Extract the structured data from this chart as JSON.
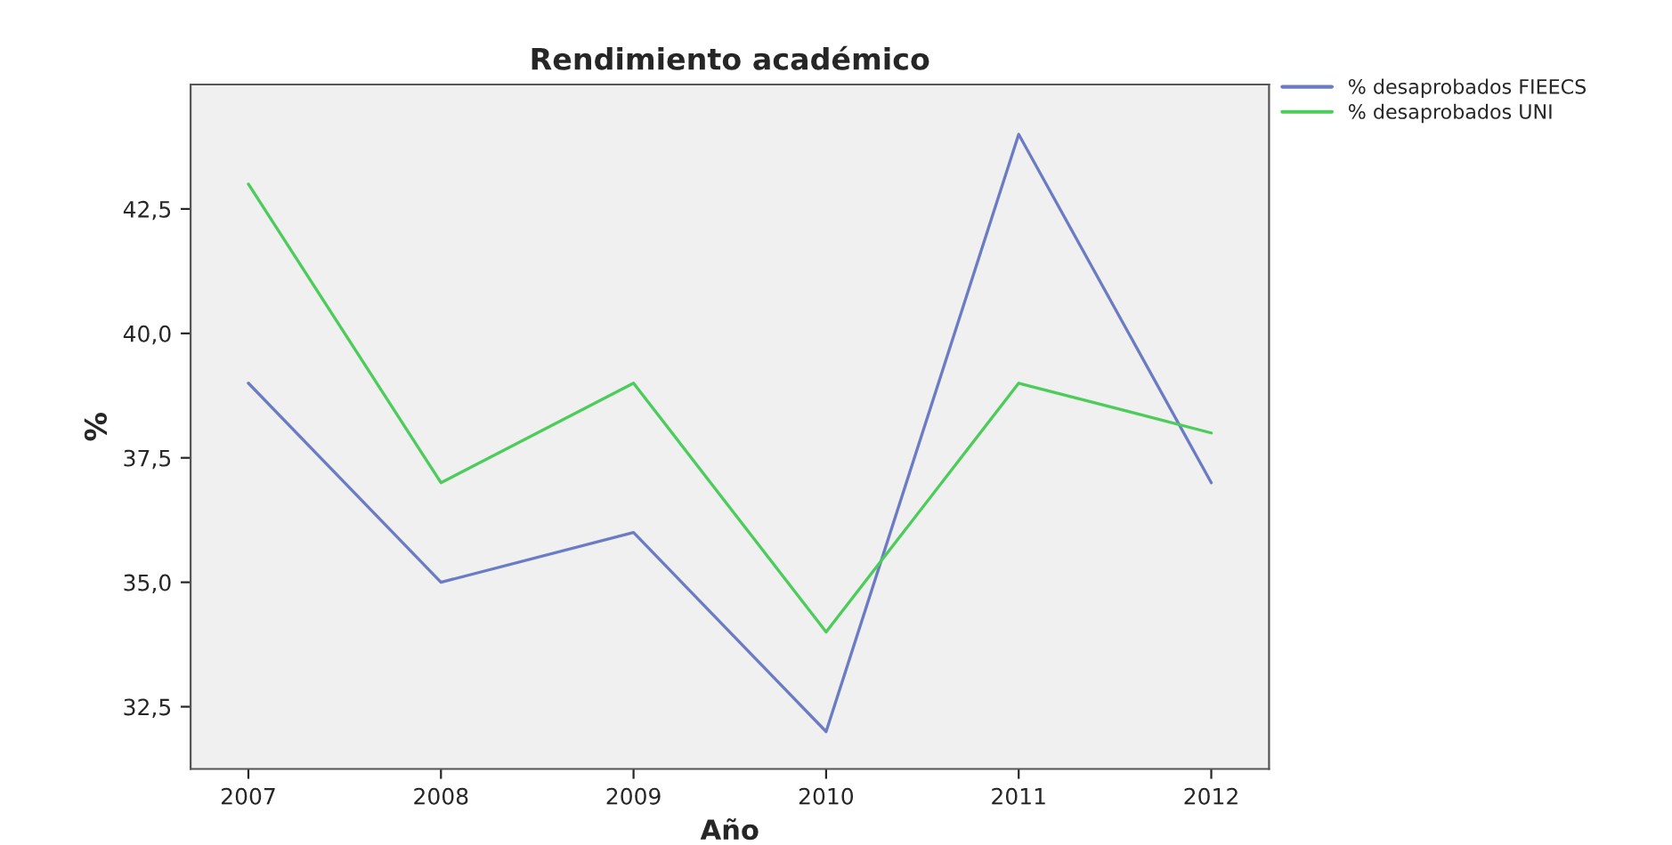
{
  "chart_data": {
    "type": "line",
    "title": "Rendimiento académico",
    "xlabel": "Año",
    "ylabel": "%",
    "categories": [
      "2007",
      "2008",
      "2009",
      "2010",
      "2011",
      "2012"
    ],
    "series": [
      {
        "name": "% desaprobados FIEECS",
        "color": "#6b7cc4",
        "values": [
          39,
          35,
          36,
          32,
          44,
          37
        ]
      },
      {
        "name": "% desaprobados UNI",
        "color": "#4ccc5a",
        "values": [
          43,
          37,
          39,
          34,
          39,
          38
        ]
      }
    ],
    "ylim": [
      31.25,
      45.0
    ],
    "yticks": [
      {
        "value": 32.5,
        "label": "32,5"
      },
      {
        "value": 35.0,
        "label": "35,0"
      },
      {
        "value": 37.5,
        "label": "37,5"
      },
      {
        "value": 40.0,
        "label": "40,0"
      },
      {
        "value": 42.5,
        "label": "42,5"
      }
    ],
    "grid": false,
    "legend": "top right",
    "marker": "none",
    "line_style": "solid"
  }
}
